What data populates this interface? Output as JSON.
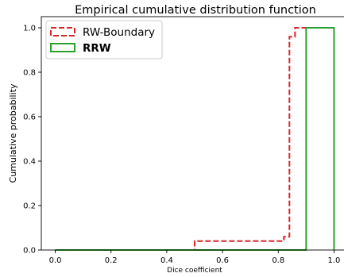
{
  "chart_data": {
    "type": "line",
    "title": "Empirical cumulative distribution function",
    "xlabel": "Dice coefficient",
    "ylabel": "Cumulative probability",
    "xlim": [
      -0.05,
      1.05
    ],
    "ylim": [
      0.0,
      1.05
    ],
    "xticks": [
      0.0,
      0.2,
      0.4,
      0.6,
      0.8,
      1.0
    ],
    "xtick_labels": [
      "0.0",
      "0.2",
      "0.4",
      "0.6",
      "0.8",
      "1.0"
    ],
    "yticks": [
      0.0,
      0.2,
      0.4,
      0.6,
      0.8,
      1.0
    ],
    "ytick_labels": [
      "0.0",
      "0.2",
      "0.4",
      "0.6",
      "0.8",
      "1.0"
    ],
    "grid": false,
    "legend_position": "upper-left",
    "series": [
      {
        "name": "RW-Boundary",
        "color": "#d62728",
        "line_style": "dashed",
        "bold_label": false,
        "x": [
          0.0,
          0.5,
          0.5,
          0.82,
          0.82,
          0.84,
          0.84,
          0.86,
          0.86,
          1.0
        ],
        "y": [
          0.0,
          0.0,
          0.04,
          0.04,
          0.06,
          0.06,
          0.96,
          0.96,
          1.0,
          1.0
        ]
      },
      {
        "name": "RRW",
        "color": "#2ca02c",
        "line_style": "solid",
        "bold_label": true,
        "x": [
          0.0,
          0.9,
          0.9,
          1.0,
          1.0
        ],
        "y": [
          0.0,
          0.0,
          1.0,
          1.0,
          0.0
        ]
      }
    ]
  }
}
